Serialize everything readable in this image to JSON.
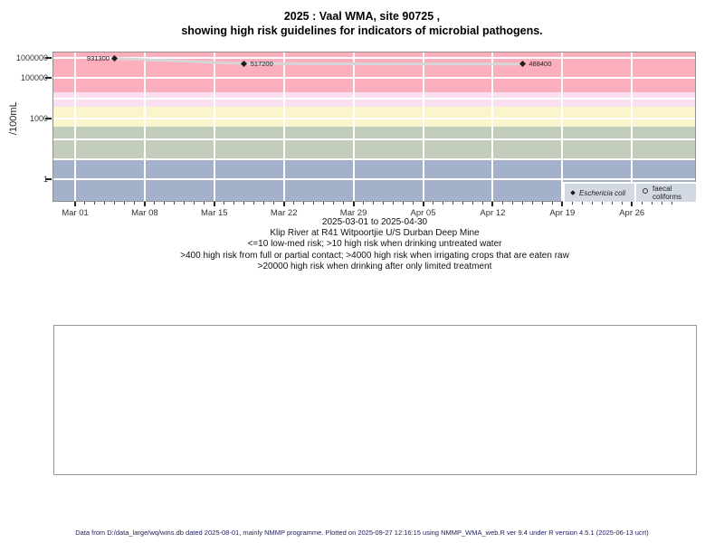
{
  "page": {
    "title_line1": "2025 : Vaal WMA, site 90725 ,",
    "title_line2": "showing high risk guidelines for indicators of microbial pathogens.",
    "footer": "Data from D:/data_large/wq/wms.db dated 2025-08-01, mainly NMMP programme. Plotted on 2025-09-27 12:16:15 using NMMP_WMA_web.R ver 9.4 under R version 4.5.1 (2025-06-13 ucrt)"
  },
  "subtitles": {
    "date_range": "2025-03-01 to 2025-04-30",
    "site": "Klip River at R41 Witpoortjie U/S Durban Deep Mine",
    "guideline1": "<=10 low-med risk; >10 high risk when drinking untreated water",
    "guideline2": ">400 high risk from full or partial contact; >4000 high risk when irrigating crops that are eaten raw",
    "guideline3": ">20000 high risk when drinking after only limited treatment"
  },
  "legend": {
    "ecoli_label": "Eschericia coli",
    "fc_label": "faecal coliforms"
  },
  "chart_data": {
    "type": "scatter",
    "title": "2025 : Vaal WMA, site 90725 , showing high risk guidelines for indicators of microbial pathogens.",
    "xlabel": "2025-03-01 to 2025-04-30",
    "ylabel": "/100mL",
    "y_scale": "log10",
    "y_ticks": [
      1,
      1000,
      100000,
      1000000
    ],
    "y_gridlines": [
      1,
      10,
      100,
      1000,
      10000,
      100000,
      1000000
    ],
    "x_start_date": "2025-03-01",
    "x_end_date": "2025-04-30",
    "x_ticks": [
      {
        "day": 0,
        "label": "Mar 01"
      },
      {
        "day": 7,
        "label": "Mar 08"
      },
      {
        "day": 14,
        "label": "Mar 15"
      },
      {
        "day": 21,
        "label": "Mar 22"
      },
      {
        "day": 28,
        "label": "Mar 29"
      },
      {
        "day": 35,
        "label": "Apr 05"
      },
      {
        "day": 42,
        "label": "Apr 12"
      },
      {
        "day": 49,
        "label": "Apr 19"
      },
      {
        "day": 56,
        "label": "Apr 26"
      }
    ],
    "minor_ticks": "daily",
    "risk_bands": [
      {
        "label": ">20000 high risk when drinking after only limited treatment",
        "from": 20000,
        "to": null,
        "color": "#fbafbc"
      },
      {
        "label": ">4000 high risk when irrigating crops that are eaten raw",
        "from": 4000,
        "to": 20000,
        "color": "#fadef2"
      },
      {
        "label": ">400 high risk from full or partial contact",
        "from": 400,
        "to": 4000,
        "color": "#faf5cb"
      },
      {
        "label": ">10 high risk when drinking untreated water",
        "from": 10,
        "to": 400,
        "color": "#c3cdbc"
      },
      {
        "label": "<=10 low-med risk",
        "from": null,
        "to": 10,
        "color": "#a3b1cb"
      }
    ],
    "series": [
      {
        "name": "Eschericia coli",
        "marker": "filled-diamond",
        "marker_color": "#1c1c1c",
        "line_color": "#d6d6d6",
        "points": [
          {
            "date": "2025-03-05",
            "value": 931300,
            "label": "931300",
            "label_side": "left"
          },
          {
            "date": "2025-03-18",
            "value": 517200,
            "label": "517200",
            "label_side": "right"
          },
          {
            "date": "2025-04-15",
            "value": 488400,
            "label": "488400",
            "label_side": "right"
          }
        ]
      },
      {
        "name": "faecal coliforms",
        "marker": "open-circle",
        "points": []
      }
    ],
    "legend_position": "bottom-right"
  }
}
